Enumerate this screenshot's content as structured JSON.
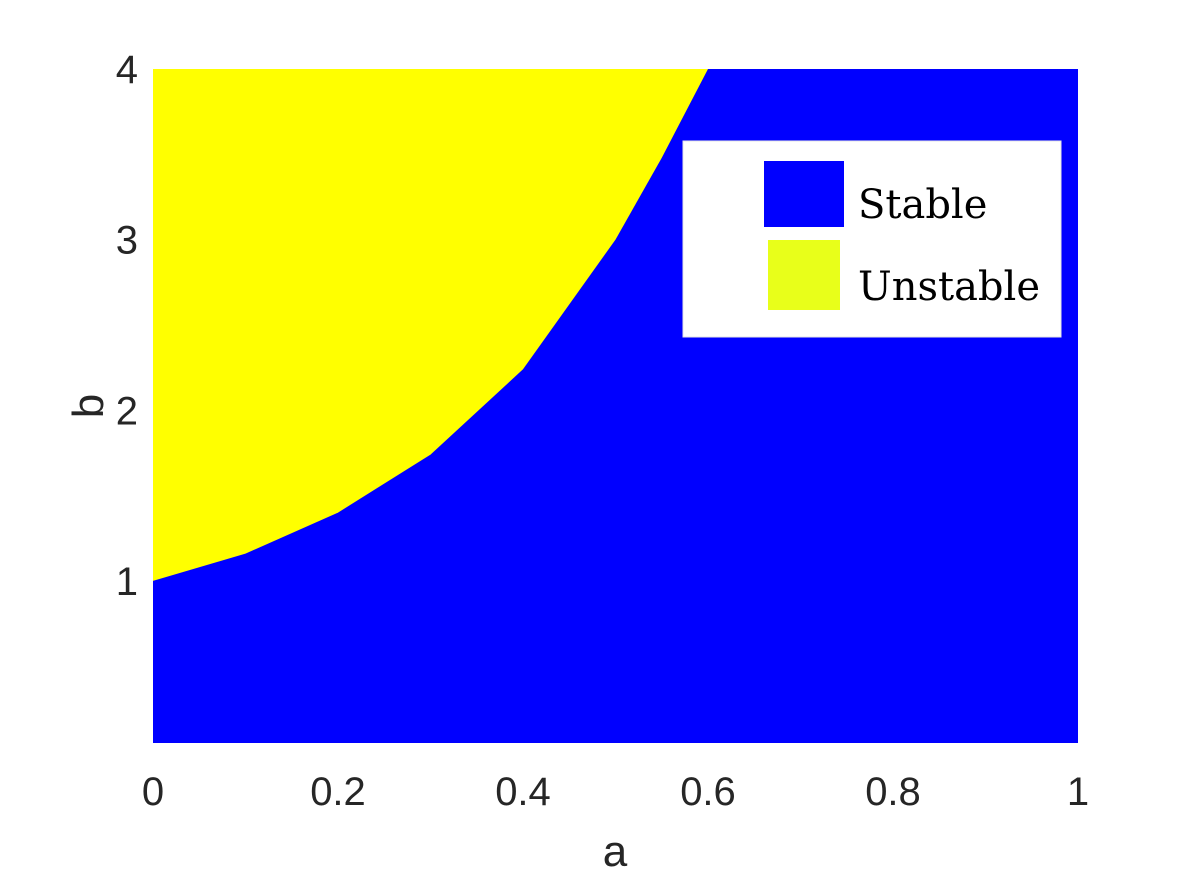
{
  "chart_data": {
    "type": "heatmap",
    "title": "",
    "xlabel": "a",
    "ylabel": "b",
    "xlim": [
      0,
      1
    ],
    "ylim": [
      0.05,
      4
    ],
    "xticks": [
      0,
      0.2,
      0.4,
      0.6,
      0.8,
      1
    ],
    "xtick_labels": [
      "0",
      "0.2",
      "0.4",
      "0.6",
      "0.8",
      "1"
    ],
    "yticks": [
      1,
      2,
      3,
      4
    ],
    "ytick_labels": [
      "1",
      "2",
      "3",
      "4"
    ],
    "grid": false,
    "legend_position": "top-right",
    "regions": [
      {
        "name": "Stable",
        "color": "#0000FF"
      },
      {
        "name": "Unstable",
        "color": "#FFFF00"
      }
    ],
    "boundary": {
      "description_points": [
        {
          "a": 0.0,
          "b": 1.0
        },
        {
          "a": 0.1,
          "b": 1.16
        },
        {
          "a": 0.2,
          "b": 1.4
        },
        {
          "a": 0.3,
          "b": 1.74
        },
        {
          "a": 0.4,
          "b": 2.24
        },
        {
          "a": 0.5,
          "b": 3.0
        },
        {
          "a": 0.55,
          "b": 3.48
        },
        {
          "a": 0.6,
          "b": 4.0
        }
      ],
      "unstable_side": "above"
    }
  },
  "legend": {
    "items": [
      {
        "label": "Stable",
        "color": "#0000FF"
      },
      {
        "label": "Unstable",
        "color": "#E8FF1A"
      }
    ]
  }
}
